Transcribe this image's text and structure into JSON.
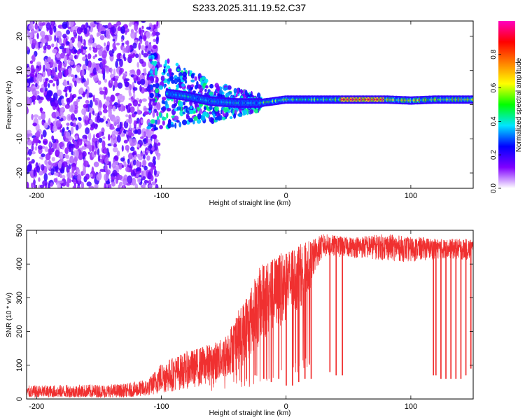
{
  "figure_title": "S233.2025.311.19.52.C37",
  "chart_data": [
    {
      "type": "heatmap",
      "title": "S233.2025.311.19.52.C37",
      "xlabel": "Height of straight line (km)",
      "ylabel": "Frequency (Hz)",
      "xlim": [
        -208,
        150
      ],
      "ylim": [
        -24.5,
        24.5
      ],
      "x_ticks": [
        -200,
        -100,
        0,
        100
      ],
      "y_ticks": [
        -20,
        -10,
        0,
        10,
        20
      ],
      "colorbar": {
        "label": "Normalized spectral amplitude",
        "range": [
          0,
          1
        ],
        "ticks": [
          0.0,
          0.2,
          0.4,
          0.6,
          0.8
        ],
        "colors": [
          "#ffffff",
          "#8000ff",
          "#0000ff",
          "#00e5ff",
          "#00ff00",
          "#ffff00",
          "#ff8000",
          "#ff0000",
          "#ff00c0"
        ]
      },
      "description_points": {
        "noise_region_x": [
          -208,
          -110
        ],
        "band_center_hz": [
          {
            "x": -100,
            "f": 3.5
          },
          {
            "x": -80,
            "f": 2.5
          },
          {
            "x": -60,
            "f": 1.0
          },
          {
            "x": -40,
            "f": 0.5
          },
          {
            "x": -20,
            "f": 0.5
          },
          {
            "x": 0,
            "f": 1.5
          },
          {
            "x": 20,
            "f": 1.5
          },
          {
            "x": 40,
            "f": 1.5
          },
          {
            "x": 60,
            "f": 1.5
          },
          {
            "x": 80,
            "f": 1.5
          },
          {
            "x": 100,
            "f": 1.2
          },
          {
            "x": 120,
            "f": 1.5
          },
          {
            "x": 150,
            "f": 1.5
          }
        ],
        "peak_amplitude_segment_x": [
          45,
          80
        ]
      }
    },
    {
      "type": "line",
      "xlabel": "Height of straight line (km)",
      "ylabel": "SNR (10 * v/v)",
      "xlim": [
        -208,
        150
      ],
      "ylim": [
        0,
        500
      ],
      "x_ticks": [
        -200,
        -100,
        0,
        100
      ],
      "y_ticks": [
        0,
        100,
        200,
        300,
        400,
        500
      ],
      "series": [
        {
          "name": "SNR",
          "color": "#f03030",
          "envelope": {
            "x": [
              -208,
              -130,
              -110,
              -100,
              -80,
              -60,
              -50,
              -40,
              -30,
              -20,
              -10,
              0,
              10,
              20,
              25,
              30,
              50,
              80,
              100,
              110,
              120,
              150
            ],
            "low": [
              5,
              5,
              10,
              15,
              30,
              40,
              60,
              80,
              110,
              160,
              200,
              230,
              260,
              330,
              390,
              420,
              420,
              410,
              405,
              410,
              415,
              410
            ],
            "high": [
              40,
              45,
              60,
              110,
              140,
              165,
              180,
              250,
              320,
              400,
              420,
              440,
              460,
              470,
              480,
              490,
              480,
              490,
              480,
              480,
              475,
              475
            ]
          },
          "dropouts_x": [
            -50,
            -40,
            -32,
            -25,
            -18,
            -12,
            -6,
            0,
            5,
            10,
            15,
            20,
            35,
            40,
            45,
            118,
            120,
            124,
            128,
            132,
            136,
            140,
            144,
            148
          ],
          "dropout_min": [
            100,
            70,
            60,
            70,
            60,
            50,
            60,
            40,
            40,
            50,
            60,
            60,
            80,
            70,
            70,
            70,
            70,
            60,
            60,
            60,
            60,
            60,
            70,
            90
          ]
        }
      ]
    }
  ]
}
